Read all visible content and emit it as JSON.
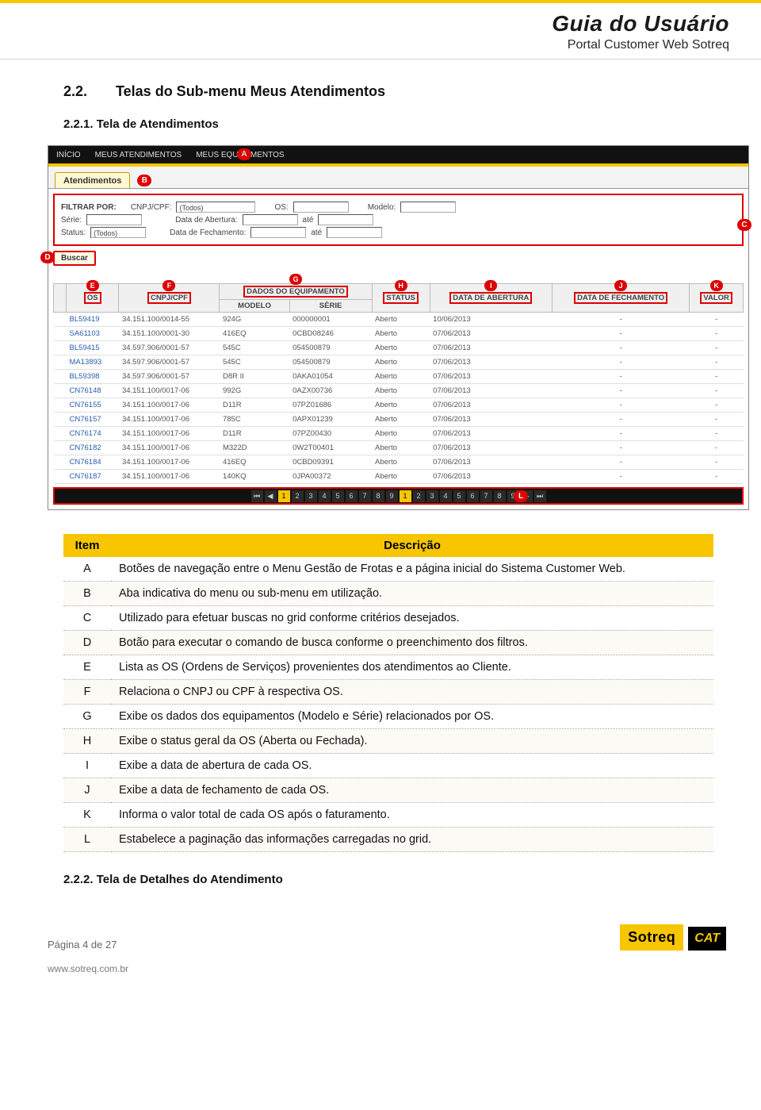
{
  "header": {
    "title": "Guia do Usuário",
    "subtitle": "Portal Customer Web Sotreq"
  },
  "section": {
    "num": "2.2.",
    "title": "Telas do Sub-menu Meus Atendimentos",
    "sub_num": "2.2.1.",
    "sub_title": "Tela de Atendimentos",
    "next_num": "2.2.2.",
    "next_title": "Tela de Detalhes do Atendimento"
  },
  "shot": {
    "nav": {
      "inicio": "INÍCIO",
      "meus_atend": "MEUS ATENDIMENTOS",
      "meus_equip": "MEUS EQUIPAMENTOS"
    },
    "tab": "Atendimentos",
    "filter": {
      "lab_filtrar": "FILTRAR POR:",
      "cnpj": "CNPJ/CPF:",
      "cnpj_val": "(Todos)",
      "os": "OS:",
      "modelo": "Modelo:",
      "serie": "Série:",
      "abertura": "Data de Abertura:",
      "ate": "até",
      "status": "Status:",
      "status_val": "(Todos)",
      "fechamento": "Data de Fechamento:"
    },
    "buscar": "Buscar",
    "cols": {
      "os": "OS",
      "cnpj": "CNPJ/CPF",
      "equip": "DADOS DO EQUIPAMENTO",
      "modelo": "MODELO",
      "serie": "SÉRIE",
      "status": "STATUS",
      "abertura": "DATA DE ABERTURA",
      "fechamento": "DATA DE FECHAMENTO",
      "valor": "VALOR"
    },
    "rows": [
      [
        "BL59419",
        "34.151.100/0014-55",
        "924G",
        "000000001",
        "Aberto",
        "10/06/2013",
        "-",
        "-"
      ],
      [
        "SA61103",
        "34.151.100/0001-30",
        "416EQ",
        "0CBD08246",
        "Aberto",
        "07/06/2013",
        "-",
        "-"
      ],
      [
        "BL59415",
        "34.597.906/0001-57",
        "545C",
        "054500879",
        "Aberto",
        "07/06/2013",
        "-",
        "-"
      ],
      [
        "MA13893",
        "34.597.906/0001-57",
        "545C",
        "054500879",
        "Aberto",
        "07/06/2013",
        "-",
        "-"
      ],
      [
        "BL59398",
        "34.597.906/0001-57",
        "D8R II",
        "0AKA01054",
        "Aberto",
        "07/06/2013",
        "-",
        "-"
      ],
      [
        "CN76148",
        "34.151.100/0017-06",
        "992G",
        "0AZX00736",
        "Aberto",
        "07/06/2013",
        "-",
        "-"
      ],
      [
        "CN76155",
        "34.151.100/0017-06",
        "D11R",
        "07PZ01686",
        "Aberto",
        "07/06/2013",
        "-",
        "-"
      ],
      [
        "CN76157",
        "34.151.100/0017-06",
        "785C",
        "0APX01239",
        "Aberto",
        "07/06/2013",
        "-",
        "-"
      ],
      [
        "CN76174",
        "34.151.100/0017-06",
        "D11R",
        "07PZ00430",
        "Aberto",
        "07/06/2013",
        "-",
        "-"
      ],
      [
        "CN76182",
        "34.151.100/0017-06",
        "M322D",
        "0W2T00401",
        "Aberto",
        "07/06/2013",
        "-",
        "-"
      ],
      [
        "CN76184",
        "34.151.100/0017-06",
        "416EQ",
        "0CBD09391",
        "Aberto",
        "07/06/2013",
        "-",
        "-"
      ],
      [
        "CN76187",
        "34.151.100/0017-06",
        "140KQ",
        "0JPA00372",
        "Aberto",
        "07/06/2013",
        "-",
        "-"
      ]
    ],
    "pages": [
      "1",
      "2",
      "3",
      "4",
      "5",
      "6",
      "7",
      "8",
      "9"
    ],
    "markers": {
      "A": "A",
      "B": "B",
      "C": "C",
      "D": "D",
      "E": "E",
      "F": "F",
      "G": "G",
      "H": "H",
      "I": "I",
      "J": "J",
      "K": "K",
      "L": "L"
    }
  },
  "table": {
    "col_item": "Item",
    "col_desc": "Descrição",
    "rows": [
      {
        "id": "A",
        "text": "Botões de navegação entre o Menu Gestão de Frotas e a página inicial do Sistema Customer Web."
      },
      {
        "id": "B",
        "text": "Aba indicativa do menu ou sub-menu em utilização."
      },
      {
        "id": "C",
        "text": "Utilizado para efetuar buscas no grid conforme critérios desejados."
      },
      {
        "id": "D",
        "text": "Botão para executar o comando de busca conforme o preenchimento dos filtros."
      },
      {
        "id": "E",
        "text": "Lista as OS (Ordens de Serviços) provenientes dos atendimentos ao Cliente."
      },
      {
        "id": "F",
        "text": "Relaciona o CNPJ ou CPF à respectiva OS."
      },
      {
        "id": "G",
        "text": "Exibe os dados dos equipamentos (Modelo e Série) relacionados por OS."
      },
      {
        "id": "H",
        "text": "Exibe o status geral da OS (Aberta ou Fechada)."
      },
      {
        "id": "I",
        "text": "Exibe a data de abertura de cada OS."
      },
      {
        "id": "J",
        "text": "Exibe a data de fechamento de cada OS."
      },
      {
        "id": "K",
        "text": "Informa o valor total de cada OS após o faturamento."
      },
      {
        "id": "L",
        "text": "Estabelece a paginação das informações carregadas no grid."
      }
    ]
  },
  "footer": {
    "page": "Página 4 de 27",
    "url": "www.sotreq.com.br",
    "sotreq": "Sotreq",
    "cat": "CAT"
  }
}
